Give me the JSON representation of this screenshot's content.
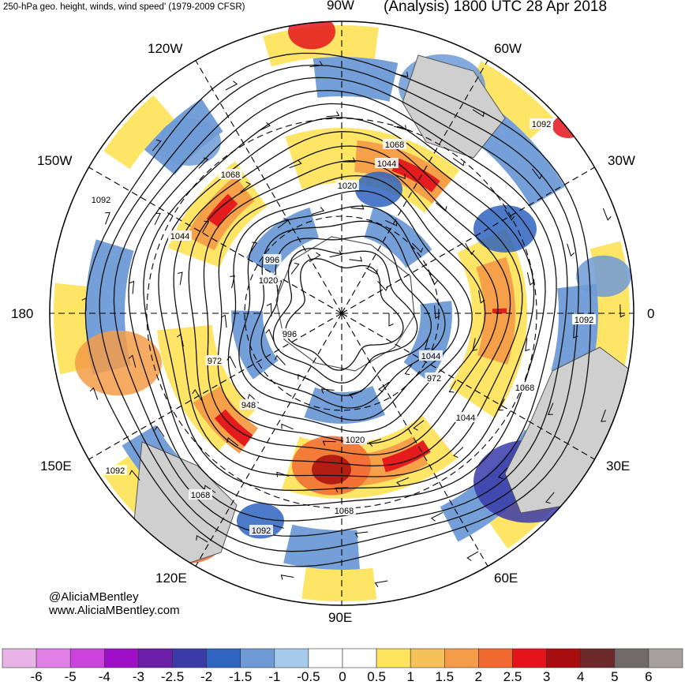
{
  "header": {
    "left": "250-hPa geo. height, winds, wind speed' (1979-2009 CFSR)",
    "right": "(Analysis) 1800 UTC 28 Apr 2018"
  },
  "lon_labels": {
    "90W": "90W",
    "60W": "60W",
    "120W": "120W",
    "30W": "30W",
    "150W": "150W",
    "180": "180",
    "0": "0",
    "150E": "150E",
    "30E": "30E",
    "120E": "120E",
    "60E": "60E",
    "90E": "90E"
  },
  "credits": {
    "handle": "@AliciaMBentley",
    "site": "www.AliciaMBentley.com"
  },
  "contour_labels": [
    "1092",
    "1068",
    "1044",
    "1020",
    "1092",
    "1068",
    "1044",
    "1020",
    "996",
    "972",
    "948",
    "1020",
    "1044",
    "972",
    "996",
    "1068",
    "1092",
    "1044",
    "1020",
    "1068",
    "1092",
    "1068",
    "1092"
  ],
  "colorbar": {
    "colors": [
      "#e8b4e8",
      "#e080e6",
      "#cc44dd",
      "#a00fc8",
      "#6b1ea8",
      "#3a3aa8",
      "#2f64c0",
      "#6e9ad6",
      "#a6cbea",
      "#ffffff",
      "#ffffff",
      "#ffe45e",
      "#f7c15a",
      "#f59c48",
      "#f06a30",
      "#e3151b",
      "#a80e0e",
      "#6e2a2a",
      "#726a6a",
      "#a6a0a0"
    ],
    "labels": [
      "-6",
      "-5",
      "-4",
      "-3",
      "-2.5",
      "-2",
      "-1.5",
      "-1",
      "-0.5",
      "0",
      "0.5",
      "1",
      "1.5",
      "2",
      "2.5",
      "3",
      "4",
      "5",
      "6"
    ]
  }
}
